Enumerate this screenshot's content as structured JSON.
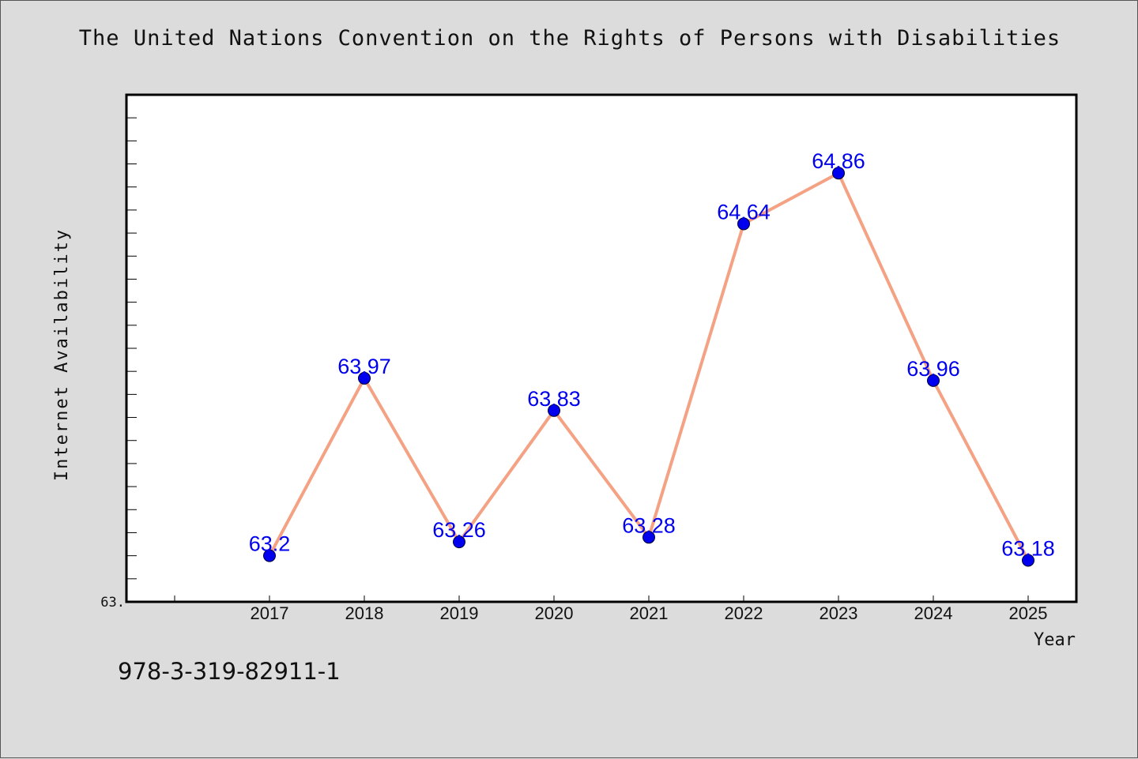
{
  "chart_data": {
    "type": "line",
    "title": "The United Nations Convention on the Rights of Persons with Disabilities",
    "xlabel": "Year",
    "ylabel": "Internet Availability",
    "categories": [
      "2017",
      "2018",
      "2019",
      "2020",
      "2021",
      "2022",
      "2023",
      "2024",
      "2025"
    ],
    "series": [
      {
        "values": [
          63.2,
          63.97,
          63.26,
          63.83,
          63.28,
          64.64,
          64.86,
          63.96,
          63.18
        ],
        "labels": [
          "63.2",
          "63.97",
          "63.26",
          "63.83",
          "63.28",
          "64.64",
          "64.86",
          "63.96",
          "63.18"
        ]
      }
    ],
    "ylim": [
      63.0,
      65.2
    ],
    "y_tick_label": "63.",
    "grid": false,
    "colors": {
      "line": "#f4a283",
      "marker": "#0000ee",
      "data_label": "#0000ee"
    }
  },
  "footer": {
    "isbn": "978-3-319-82911-1"
  }
}
